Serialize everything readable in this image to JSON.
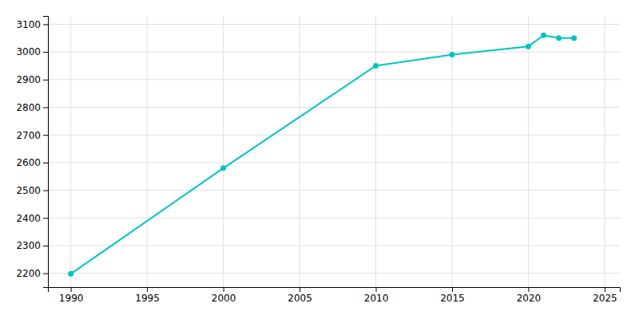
{
  "chart_data": {
    "type": "line",
    "x": [
      1990,
      2000,
      2010,
      2015,
      2020,
      2021,
      2022,
      2023
    ],
    "values": [
      2198,
      2580,
      2950,
      2990,
      3020,
      3060,
      3050,
      3050
    ],
    "color": "#00C4C4",
    "marker": "circle",
    "xlim": [
      1988.5,
      2026
    ],
    "ylim": [
      2150,
      3130
    ],
    "xticks": [
      1990,
      1995,
      2000,
      2005,
      2010,
      2015,
      2020,
      2025
    ],
    "yticks": [
      2200,
      2300,
      2400,
      2500,
      2600,
      2700,
      2800,
      2900,
      3000,
      3100
    ],
    "grid": true
  }
}
